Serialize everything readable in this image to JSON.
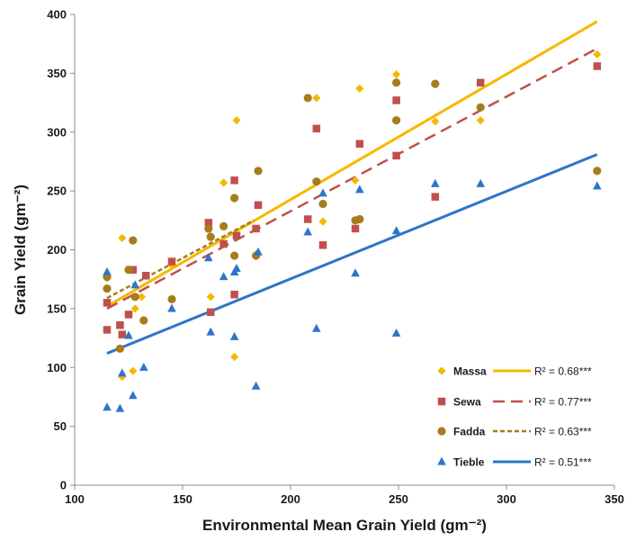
{
  "chart_data": {
    "type": "scatter",
    "xlabel": "Environmental Mean Grain Yield (gm⁻²)",
    "ylabel": "Grain Yield (gm⁻²)",
    "xlim": [
      100,
      350
    ],
    "ylim": [
      0,
      400
    ],
    "xticks": [
      "100",
      "150",
      "200",
      "250",
      "300",
      "350"
    ],
    "yticks": [
      "0",
      "50",
      "100",
      "150",
      "200",
      "250",
      "300",
      "350",
      "400"
    ],
    "grid": false,
    "legend_position": "bottom-right",
    "series": [
      {
        "name": "Massa",
        "color": "#F5B800",
        "marker": "diamond",
        "r2": "R² = 0.68***",
        "trend": {
          "x": [
            115,
            342
          ],
          "y": [
            152,
            394
          ],
          "style": "solid"
        },
        "points": [
          [
            115,
            176
          ],
          [
            122,
            92
          ],
          [
            122,
            210
          ],
          [
            127,
            97
          ],
          [
            128,
            150
          ],
          [
            131,
            160
          ],
          [
            145,
            187
          ],
          [
            163,
            160
          ],
          [
            169,
            257
          ],
          [
            174,
            109
          ],
          [
            175,
            310
          ],
          [
            184,
            196
          ],
          [
            212,
            329
          ],
          [
            215,
            224
          ],
          [
            230,
            259
          ],
          [
            232,
            337
          ],
          [
            249,
            349
          ],
          [
            267,
            309
          ],
          [
            288,
            310
          ],
          [
            342,
            366
          ]
        ]
      },
      {
        "name": "Sewa",
        "color": "#C0504D",
        "marker": "square",
        "r2": "R² = 0.77***",
        "trend": {
          "x": [
            115,
            342
          ],
          "y": [
            150,
            371
          ],
          "style": "dashed"
        },
        "points": [
          [
            115,
            155
          ],
          [
            115,
            132
          ],
          [
            121,
            136
          ],
          [
            122,
            128
          ],
          [
            125,
            145
          ],
          [
            127,
            183
          ],
          [
            133,
            178
          ],
          [
            145,
            190
          ],
          [
            162,
            223
          ],
          [
            163,
            147
          ],
          [
            169,
            205
          ],
          [
            174,
            162
          ],
          [
            174,
            259
          ],
          [
            175,
            212
          ],
          [
            184,
            218
          ],
          [
            185,
            238
          ],
          [
            208,
            226
          ],
          [
            212,
            303
          ],
          [
            215,
            204
          ],
          [
            230,
            218
          ],
          [
            232,
            290
          ],
          [
            249,
            327
          ],
          [
            249,
            280
          ],
          [
            267,
            245
          ],
          [
            288,
            342
          ],
          [
            342,
            356
          ]
        ]
      },
      {
        "name": "Fadda",
        "color": "#A67C1C",
        "marker": "circle",
        "r2": "R² = 0.63***",
        "trend": {
          "x": [
            115,
            183
          ],
          "y": [
            159,
            225
          ],
          "style": "dotted"
        },
        "points": [
          [
            115,
            167
          ],
          [
            115,
            177
          ],
          [
            121,
            116
          ],
          [
            125,
            183
          ],
          [
            127,
            208
          ],
          [
            128,
            160
          ],
          [
            132,
            140
          ],
          [
            145,
            158
          ],
          [
            162,
            218
          ],
          [
            163,
            211
          ],
          [
            169,
            220
          ],
          [
            174,
            244
          ],
          [
            174,
            195
          ],
          [
            184,
            195
          ],
          [
            185,
            267
          ],
          [
            208,
            329
          ],
          [
            212,
            258
          ],
          [
            215,
            239
          ],
          [
            230,
            225
          ],
          [
            232,
            226
          ],
          [
            249,
            342
          ],
          [
            249,
            310
          ],
          [
            267,
            341
          ],
          [
            288,
            321
          ],
          [
            342,
            267
          ]
        ]
      },
      {
        "name": "Tieble",
        "color": "#2E75C8",
        "marker": "triangle",
        "r2": "R² = 0.51***",
        "trend": {
          "x": [
            115,
            342
          ],
          "y": [
            112,
            281
          ],
          "style": "solid"
        },
        "points": [
          [
            115,
            181
          ],
          [
            115,
            66
          ],
          [
            121,
            65
          ],
          [
            122,
            95
          ],
          [
            125,
            127
          ],
          [
            127,
            76
          ],
          [
            128,
            170
          ],
          [
            132,
            100
          ],
          [
            145,
            150
          ],
          [
            162,
            193
          ],
          [
            163,
            130
          ],
          [
            169,
            177
          ],
          [
            174,
            126
          ],
          [
            174,
            181
          ],
          [
            175,
            184
          ],
          [
            184,
            84
          ],
          [
            185,
            198
          ],
          [
            208,
            215
          ],
          [
            212,
            133
          ],
          [
            215,
            248
          ],
          [
            230,
            180
          ],
          [
            232,
            251
          ],
          [
            249,
            216
          ],
          [
            249,
            129
          ],
          [
            267,
            256
          ],
          [
            288,
            256
          ],
          [
            342,
            254
          ]
        ]
      }
    ]
  }
}
